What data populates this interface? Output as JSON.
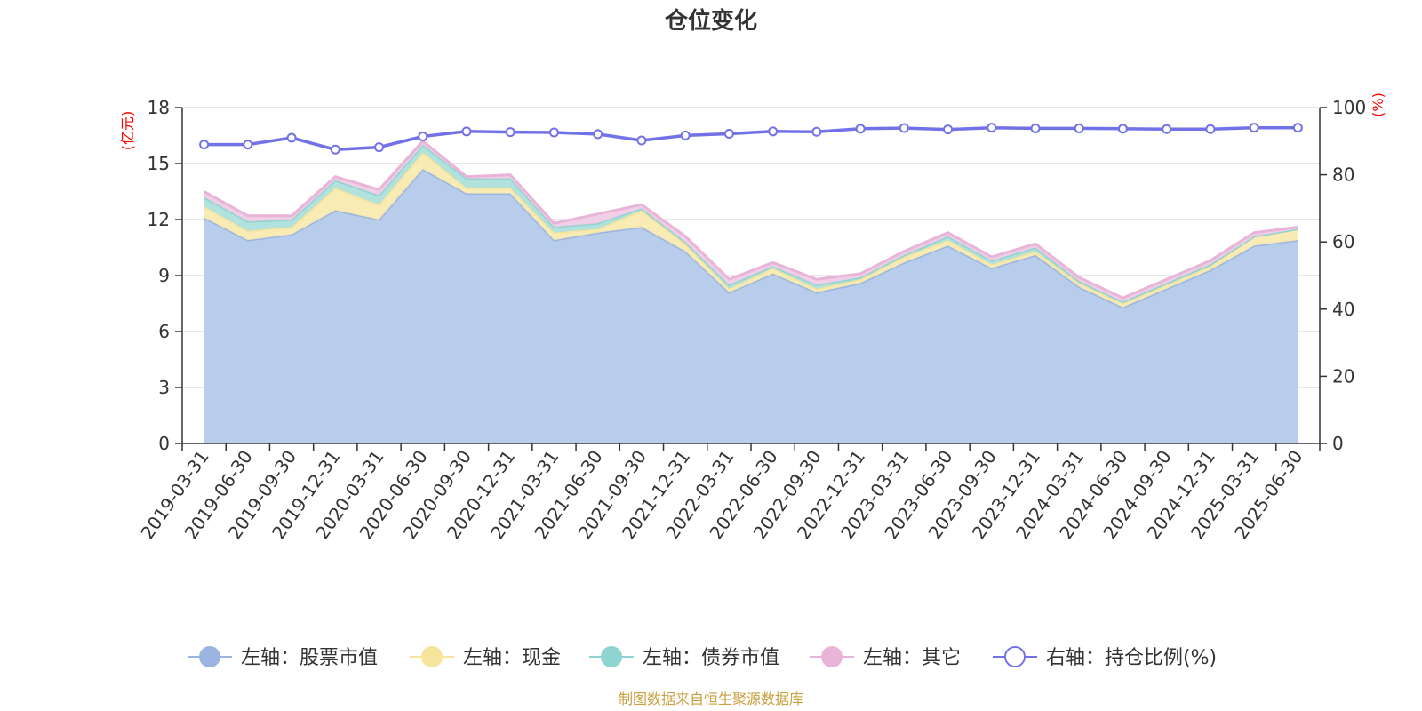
{
  "chart_data": {
    "type": "area",
    "title": "仓位变化",
    "left_unit": "(亿元)",
    "right_unit": "(%)",
    "left_axis": {
      "min": 0,
      "max": 18,
      "ticks": [
        "0",
        "3",
        "6",
        "9",
        "12",
        "15",
        "18"
      ]
    },
    "right_axis": {
      "min": 0,
      "max": 100,
      "ticks": [
        "0",
        "20",
        "40",
        "60",
        "80",
        "100"
      ]
    },
    "categories": [
      "2019-03-31",
      "2019-06-30",
      "2019-09-30",
      "2019-12-31",
      "2020-03-31",
      "2020-06-30",
      "2020-09-30",
      "2020-12-31",
      "2021-03-31",
      "2021-06-30",
      "2021-09-30",
      "2021-12-31",
      "2022-03-31",
      "2022-06-30",
      "2022-09-30",
      "2022-12-31",
      "2023-03-31",
      "2023-06-30",
      "2023-09-30",
      "2023-12-31",
      "2024-03-31",
      "2024-06-30",
      "2024-09-30",
      "2024-12-31",
      "2025-03-31",
      "2025-06-30"
    ],
    "stacked_series": [
      {
        "name": "左轴：股票市值",
        "color": "#9bb5e0",
        "fill": "#b8cceb",
        "values": [
          12.1,
          10.9,
          11.2,
          12.5,
          12.0,
          14.7,
          13.4,
          13.4,
          10.9,
          11.3,
          11.6,
          10.3,
          8.1,
          9.1,
          8.1,
          8.6,
          9.7,
          10.6,
          9.4,
          10.1,
          8.4,
          7.3,
          8.3,
          9.3,
          10.6,
          10.9
        ]
      },
      {
        "name": "左轴：现金",
        "color": "#f6e49c",
        "fill": "#f8eab0",
        "values": [
          0.6,
          0.5,
          0.4,
          1.2,
          0.8,
          0.9,
          0.3,
          0.3,
          0.4,
          0.2,
          0.9,
          0.4,
          0.2,
          0.3,
          0.2,
          0.2,
          0.3,
          0.3,
          0.2,
          0.2,
          0.2,
          0.2,
          0.2,
          0.2,
          0.5,
          0.6
        ]
      },
      {
        "name": "左轴：债券市值",
        "color": "#8fd4d0",
        "fill": "#aee0dc",
        "values": [
          0.5,
          0.5,
          0.4,
          0.4,
          0.5,
          0.4,
          0.5,
          0.5,
          0.3,
          0.3,
          0.1,
          0.1,
          0.2,
          0.1,
          0.2,
          0.1,
          0.1,
          0.2,
          0.2,
          0.2,
          0.1,
          0.1,
          0.1,
          0.1,
          0.0,
          0.0
        ]
      },
      {
        "name": "左轴：其它",
        "color": "#e8b4d8",
        "fill": "#f0cce6",
        "values": [
          0.3,
          0.3,
          0.2,
          0.2,
          0.3,
          0.2,
          0.1,
          0.2,
          0.2,
          0.5,
          0.2,
          0.3,
          0.3,
          0.2,
          0.3,
          0.2,
          0.2,
          0.2,
          0.2,
          0.2,
          0.2,
          0.2,
          0.2,
          0.2,
          0.2,
          0.1
        ]
      }
    ],
    "line_series": {
      "name": "右轴：持仓比例(%)",
      "color": "#7272e8",
      "axis": "right",
      "values": [
        89,
        89,
        91,
        87.5,
        88.2,
        91.4,
        92.9,
        92.7,
        92.6,
        92.1,
        90.2,
        91.7,
        92.2,
        92.9,
        92.8,
        93.7,
        93.9,
        93.5,
        94.0,
        93.8,
        93.8,
        93.7,
        93.6,
        93.6,
        94.0,
        94.0
      ]
    },
    "grid": true,
    "legend_position": "bottom"
  },
  "source_text": "制图数据来自恒生聚源数据库"
}
